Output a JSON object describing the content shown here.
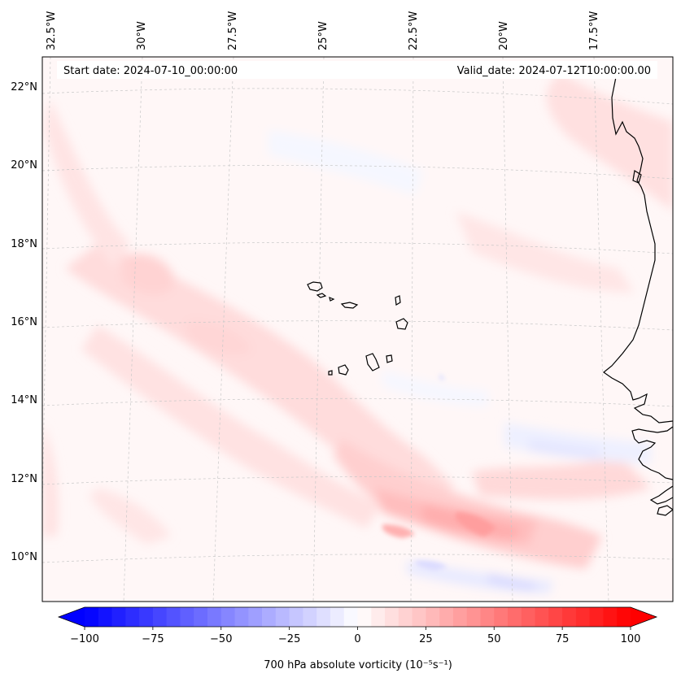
{
  "header": {
    "start_date": "Start date: 2024-07-10_00:00:00",
    "valid_date": "Valid_date: 2024-07-12T10:00:00.00"
  },
  "map": {
    "lon_labels": [
      "32.5°W",
      "30°W",
      "27.5°W",
      "25°W",
      "22.5°W",
      "20°W",
      "17.5°W"
    ],
    "lat_labels": [
      "22°N",
      "20°N",
      "18°N",
      "16°N",
      "14°N",
      "12°N",
      "10°N"
    ],
    "gridlines": "dashed"
  },
  "colorbar": {
    "label": "700 hPa absolute vorticity (10⁻⁵s⁻¹)",
    "ticks": [
      "−100",
      "−75",
      "−50",
      "−25",
      "0",
      "25",
      "50",
      "75",
      "100"
    ],
    "min": -100,
    "max": 100,
    "levels": 40,
    "colormap": "bwr",
    "extend": "both"
  },
  "colors": {
    "negative": "#0000ff",
    "neutral": "#ffffff",
    "positive": "#ff0000",
    "coastline": "#000000"
  }
}
